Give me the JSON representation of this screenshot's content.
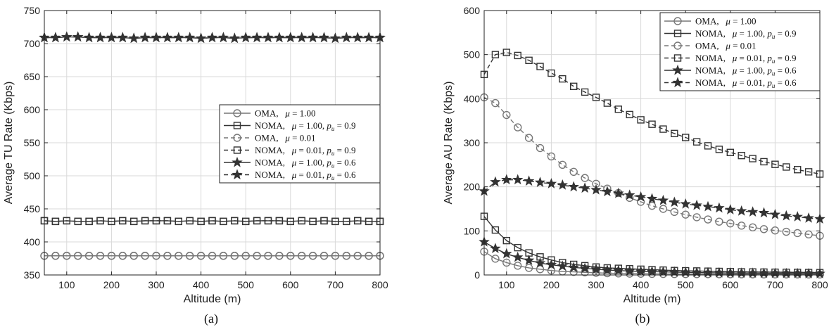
{
  "chart_data": [
    {
      "type": "line",
      "xlabel": "Altitude (m)",
      "ylabel": "Average TU Rate (Kbps)",
      "caption": "(a)",
      "xlim": [
        50,
        800
      ],
      "ylim": [
        350,
        750
      ],
      "xticks": [
        100,
        200,
        300,
        400,
        500,
        600,
        700,
        800
      ],
      "yticks": [
        350,
        400,
        450,
        500,
        550,
        600,
        650,
        700,
        750
      ],
      "grid": true,
      "legend_position": "right-middle",
      "x": [
        50,
        75,
        100,
        125,
        150,
        175,
        200,
        225,
        250,
        275,
        300,
        325,
        350,
        375,
        400,
        425,
        450,
        475,
        500,
        525,
        550,
        575,
        600,
        625,
        650,
        675,
        700,
        725,
        750,
        775,
        800
      ],
      "series": [
        {
          "name": "OMA, μ = 1.00",
          "label_html": "OMA, &nbsp;&nbsp;<tspan font-style='italic'>μ</tspan> = 1.00",
          "color": "#777777",
          "dash": "solid",
          "marker": "circle",
          "values": [
            379,
            379,
            379,
            379,
            379,
            379,
            379,
            379,
            379,
            379,
            379,
            379,
            379,
            379,
            379,
            379,
            379,
            379,
            379,
            379,
            379,
            379,
            379,
            379,
            379,
            379,
            379,
            379,
            379,
            379,
            379
          ]
        },
        {
          "name": "NOMA, μ = 1.00, pu = 0.9",
          "color": "#333333",
          "dash": "solid",
          "marker": "square",
          "values": [
            432,
            431,
            432,
            431,
            431,
            432,
            431,
            432,
            431,
            432,
            432,
            432,
            431,
            432,
            431,
            432,
            431,
            432,
            431,
            432,
            432,
            432,
            431,
            432,
            431,
            432,
            431,
            431,
            432,
            431,
            431
          ]
        },
        {
          "name": "OMA, μ = 0.01",
          "color": "#777777",
          "dash": "dashed",
          "marker": "circle",
          "values": [
            379,
            379,
            379,
            379,
            379,
            379,
            379,
            379,
            379,
            379,
            379,
            379,
            379,
            379,
            379,
            379,
            379,
            379,
            379,
            379,
            379,
            379,
            379,
            379,
            379,
            379,
            379,
            379,
            379,
            379,
            379
          ]
        },
        {
          "name": "NOMA, μ = 0.01, pu = 0.9",
          "color": "#333333",
          "dash": "dashed",
          "marker": "square",
          "values": [
            432,
            431,
            432,
            431,
            431,
            432,
            431,
            432,
            431,
            432,
            432,
            432,
            431,
            432,
            431,
            432,
            431,
            432,
            431,
            432,
            432,
            432,
            431,
            432,
            431,
            432,
            431,
            431,
            432,
            431,
            431
          ]
        },
        {
          "name": "NOMA, μ = 1.00, pu = 0.6",
          "color": "#333333",
          "dash": "solid",
          "marker": "star",
          "values": [
            709,
            709,
            710,
            710,
            709,
            709,
            709,
            709,
            708,
            709,
            709,
            709,
            709,
            709,
            708,
            709,
            709,
            708,
            709,
            709,
            709,
            709,
            709,
            709,
            709,
            709,
            708,
            709,
            709,
            709,
            709
          ]
        },
        {
          "name": "NOMA, μ = 0.01, pu = 0.6",
          "color": "#333333",
          "dash": "dashed",
          "marker": "star",
          "values": [
            709,
            709,
            710,
            710,
            709,
            709,
            709,
            709,
            708,
            709,
            709,
            709,
            709,
            709,
            708,
            709,
            709,
            708,
            709,
            709,
            709,
            709,
            709,
            709,
            709,
            709,
            708,
            709,
            709,
            709,
            709
          ]
        }
      ]
    },
    {
      "type": "line",
      "xlabel": "Altitude (m)",
      "ylabel": "Average AU Rate (Kbps)",
      "caption": "(b)",
      "xlim": [
        50,
        800
      ],
      "ylim": [
        0,
        600
      ],
      "xticks": [
        100,
        200,
        300,
        400,
        500,
        600,
        700,
        800
      ],
      "yticks": [
        0,
        100,
        200,
        300,
        400,
        500,
        600
      ],
      "grid": true,
      "legend_position": "top-right",
      "x": [
        50,
        75,
        100,
        125,
        150,
        175,
        200,
        225,
        250,
        275,
        300,
        325,
        350,
        375,
        400,
        425,
        450,
        475,
        500,
        525,
        550,
        575,
        600,
        625,
        650,
        675,
        700,
        725,
        750,
        775,
        800
      ],
      "series": [
        {
          "name": "OMA, μ = 1.00",
          "color": "#777777",
          "dash": "solid",
          "marker": "circle",
          "values": [
            53,
            37,
            28,
            21,
            16,
            13,
            10,
            8,
            7,
            6,
            5,
            4,
            3.5,
            3,
            2.8,
            2.5,
            2.3,
            2.1,
            2,
            1.9,
            1.8,
            1.7,
            1.6,
            1.5,
            1.4,
            1.3,
            1.3,
            1.2,
            1.2,
            1.1,
            1.1
          ]
        },
        {
          "name": "NOMA, μ = 1.00, pu = 0.9",
          "color": "#333333",
          "dash": "solid",
          "marker": "square",
          "values": [
            133,
            102,
            78,
            62,
            50,
            41,
            34,
            28,
            24,
            21,
            18,
            16,
            15,
            14,
            13,
            12,
            11,
            10,
            9.5,
            9,
            8.5,
            8,
            7.5,
            7,
            6.8,
            6.5,
            6.2,
            6,
            5.8,
            5.5,
            5.3
          ]
        },
        {
          "name": "OMA, μ = 0.01",
          "color": "#777777",
          "dash": "dashed",
          "marker": "circle",
          "values": [
            403,
            390,
            363,
            335,
            311,
            288,
            269,
            250,
            234,
            220,
            207,
            196,
            186,
            175,
            166,
            157,
            150,
            143,
            137,
            131,
            126,
            121,
            117,
            112,
            108,
            104,
            101,
            98,
            95,
            92,
            89
          ]
        },
        {
          "name": "NOMA, μ = 0.01, pu = 0.9",
          "color": "#333333",
          "dash": "dashed",
          "marker": "square",
          "values": [
            455,
            500,
            505,
            498,
            487,
            473,
            458,
            445,
            428,
            415,
            403,
            390,
            376,
            364,
            352,
            342,
            331,
            321,
            312,
            302,
            293,
            285,
            278,
            271,
            264,
            257,
            251,
            245,
            239,
            234,
            229
          ]
        },
        {
          "name": "NOMA, μ = 1.00, pu = 0.6",
          "color": "#333333",
          "dash": "solid",
          "marker": "star",
          "values": [
            75,
            60,
            48,
            40,
            33,
            27,
            23,
            20,
            17,
            15,
            13,
            11,
            10,
            9,
            8,
            7.5,
            7,
            6.5,
            6,
            5.5,
            5,
            4.8,
            4.5,
            4.2,
            4,
            3.8,
            3.6,
            3.4,
            3.2,
            3,
            2.9
          ]
        },
        {
          "name": "NOMA, μ = 0.01, pu = 0.6",
          "color": "#333333",
          "dash": "dashed",
          "marker": "star",
          "values": [
            190,
            211,
            216,
            216,
            213,
            210,
            207,
            204,
            200,
            197,
            193,
            189,
            185,
            181,
            177,
            173,
            169,
            165,
            161,
            158,
            155,
            152,
            148,
            145,
            143,
            141,
            137,
            134,
            132,
            129,
            127
          ]
        }
      ]
    }
  ]
}
